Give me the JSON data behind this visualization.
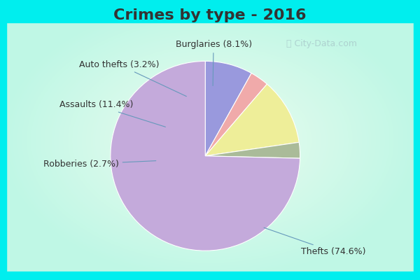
{
  "title": "Crimes by type - 2016",
  "title_fontsize": 16,
  "title_fontweight": "bold",
  "title_color": "#333333",
  "slices": [
    {
      "label": "Thefts (74.6%)",
      "value": 74.6,
      "color": "#C4AADB"
    },
    {
      "label": "Robberies (2.7%)",
      "value": 2.7,
      "color": "#AABB99"
    },
    {
      "label": "Assaults (11.4%)",
      "value": 11.4,
      "color": "#EEEE99"
    },
    {
      "label": "Auto thefts (3.2%)",
      "value": 3.2,
      "color": "#F0AAAA"
    },
    {
      "label": "Burglaries (8.1%)",
      "value": 8.1,
      "color": "#9999DD"
    }
  ],
  "bg_border": "#00EEEE",
  "bg_center_outer": "#C8EEC8",
  "bg_center_inner": "#E8F8F0",
  "label_fontsize": 9,
  "label_color": "#333333",
  "watermark": "ⓘ City-Data.com",
  "watermark_color": "#AACCCC"
}
